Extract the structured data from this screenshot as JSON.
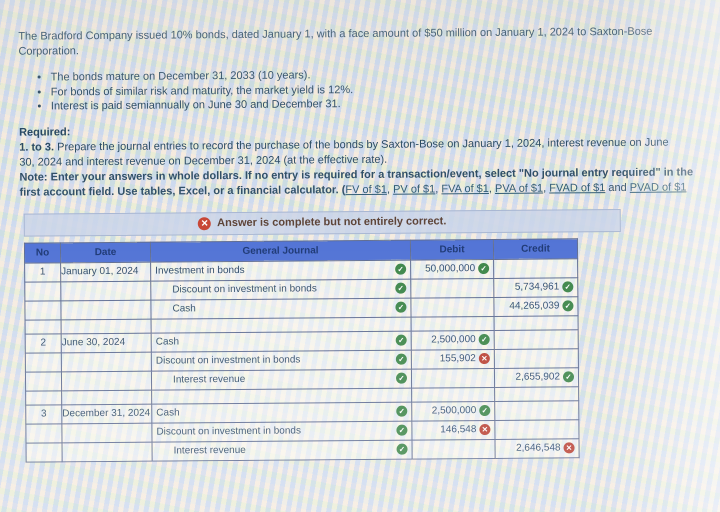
{
  "problem": {
    "intro_line1": "The Bradford Company issued 10% bonds, dated January 1, with a face amount of $50 million on January 1, 2024 to Saxton-Bose",
    "intro_line2": "Corporation.",
    "bullets": [
      "The bonds mature on December 31, 2033 (10 years).",
      "For bonds of similar risk and maturity, the market yield is 12%.",
      "Interest is paid semiannually on June 30 and December 31."
    ],
    "required_label": "Required:",
    "required_bold": "1. to 3.",
    "required_rest": " Prepare the journal entries to record the purchase of the bonds by Saxton-Bose on January 1, 2024, interest revenue on June",
    "required_line2": "30, 2024 and interest revenue on December 31, 2024 (at the effective rate).",
    "note_line1": "Note: Enter your answers in whole dollars. If no entry is required for a transaction/event, select \"No journal entry required\" in the",
    "note_line2_prefix": "first account field. Use tables, Excel, or a financial calculator. (",
    "note_links": [
      "FV of $1",
      "PV of $1",
      "FVA of $1",
      "PVA of $1",
      "FVAD of $1",
      "PVAD of $1"
    ],
    "note_seps": [
      ", ",
      ", ",
      ", ",
      ", ",
      " and "
    ]
  },
  "banner": {
    "icon": "x-circle",
    "text": "Answer is complete but not entirely correct."
  },
  "table": {
    "headers": {
      "no": "No",
      "date": "Date",
      "journal": "General Journal",
      "debit": "Debit",
      "credit": "Credit"
    },
    "icons": {
      "correct": "check-circle",
      "incorrect": "x-circle"
    },
    "rows": [
      {
        "no": "1",
        "date": "January 01, 2024",
        "account": "Investment in bonds",
        "indent": "0",
        "account_status": "correct",
        "debit": "50,000,000",
        "debit_status": "correct",
        "credit": "",
        "credit_status": "none"
      },
      {
        "no": "",
        "date": "",
        "account": "Discount on investment in bonds",
        "indent": "1",
        "account_status": "correct",
        "debit": "",
        "debit_status": "none",
        "credit": "5,734,961",
        "credit_status": "correct"
      },
      {
        "no": "",
        "date": "",
        "account": "Cash",
        "indent": "1",
        "account_status": "correct",
        "debit": "",
        "debit_status": "none",
        "credit": "44,265,039",
        "credit_status": "correct"
      },
      {
        "no": "2",
        "date": "June 30, 2024",
        "account": "Cash",
        "indent": "0",
        "account_status": "correct",
        "debit": "2,500,000",
        "debit_status": "correct",
        "credit": "",
        "credit_status": "none"
      },
      {
        "no": "",
        "date": "",
        "account": "Discount on investment in bonds",
        "indent": "0",
        "account_status": "correct",
        "debit": "155,902",
        "debit_status": "incorrect",
        "credit": "",
        "credit_status": "none"
      },
      {
        "no": "",
        "date": "",
        "account": "Interest revenue",
        "indent": "1",
        "account_status": "correct",
        "debit": "",
        "debit_status": "none",
        "credit": "2,655,902",
        "credit_status": "correct"
      },
      {
        "no": "3",
        "date": "December 31, 2024",
        "account": "Cash",
        "indent": "0",
        "account_status": "correct",
        "debit": "2,500,000",
        "debit_status": "correct",
        "credit": "",
        "credit_status": "none"
      },
      {
        "no": "",
        "date": "",
        "account": "Discount on investment in bonds",
        "indent": "0",
        "account_status": "correct",
        "debit": "146,548",
        "debit_status": "incorrect",
        "credit": "",
        "credit_status": "none"
      },
      {
        "no": "",
        "date": "",
        "account": "Interest revenue",
        "indent": "1",
        "account_status": "correct",
        "debit": "",
        "debit_status": "none",
        "credit": "2,646,548",
        "credit_status": "incorrect"
      }
    ]
  }
}
